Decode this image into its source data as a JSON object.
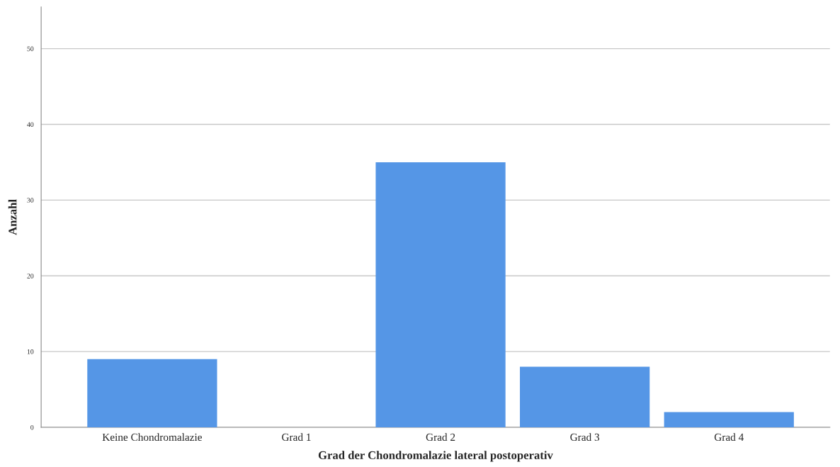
{
  "chart_data": {
    "type": "bar",
    "xlabel": "Grad der Chondromalazie lateral postoperativ",
    "ylabel": "Anzahl",
    "categories": [
      "Keine Chondromalazie",
      "Grad 1",
      "Grad 2",
      "Grad 3",
      "Grad 4"
    ],
    "values": [
      9,
      0,
      35,
      8,
      2
    ],
    "color": "#5596e6",
    "ylim": [
      0,
      55.5
    ],
    "yticks": [
      0,
      10,
      20,
      30,
      40,
      50
    ],
    "grid": "y",
    "legend": false
  }
}
